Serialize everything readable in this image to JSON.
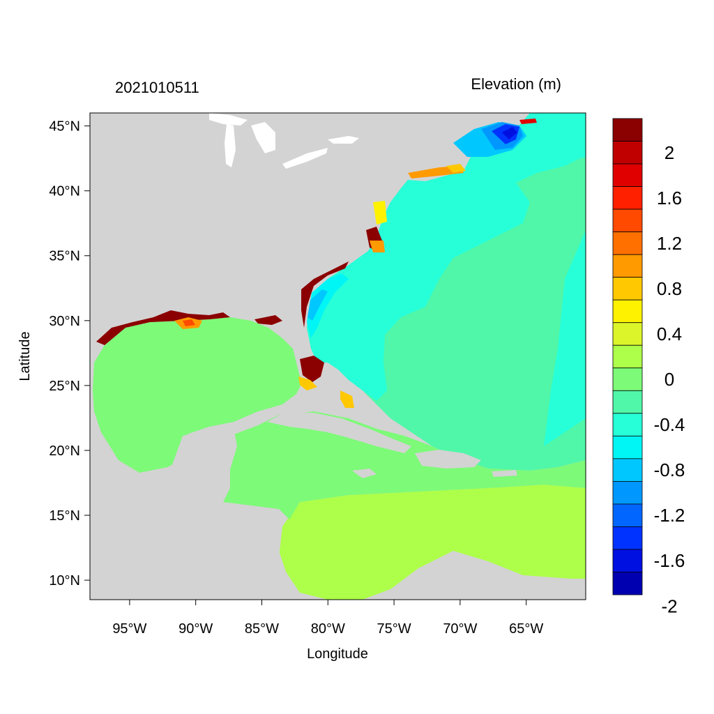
{
  "header": {
    "left_title": "2021010511",
    "right_title": "Elevation (m)"
  },
  "axes": {
    "xlabel": "Longitude",
    "ylabel": "Latitude",
    "lon_range": [
      -98,
      -60.5
    ],
    "lat_range": [
      8.5,
      46
    ],
    "x_ticks": [
      {
        "value": -95,
        "label": "95°W"
      },
      {
        "value": -90,
        "label": "90°W"
      },
      {
        "value": -85,
        "label": "85°W"
      },
      {
        "value": -80,
        "label": "80°W"
      },
      {
        "value": -75,
        "label": "75°W"
      },
      {
        "value": -70,
        "label": "70°W"
      },
      {
        "value": -65,
        "label": "65°W"
      }
    ],
    "y_ticks": [
      {
        "value": 45,
        "label": "45°N"
      },
      {
        "value": 40,
        "label": "40°N"
      },
      {
        "value": 35,
        "label": "35°N"
      },
      {
        "value": 30,
        "label": "30°N"
      },
      {
        "value": 25,
        "label": "25°N"
      },
      {
        "value": 20,
        "label": "20°N"
      },
      {
        "value": 15,
        "label": "15°N"
      },
      {
        "value": 10,
        "label": "10°N"
      }
    ]
  },
  "colorbar": {
    "levels_top_to_bottom": [
      "#8b0000",
      "#c00000",
      "#e00000",
      "#ff2000",
      "#ff4a00",
      "#ff7000",
      "#ff9a00",
      "#ffc800",
      "#fff200",
      "#dcf52a",
      "#adff4a",
      "#7dfa78",
      "#50f7a8",
      "#27ffd8",
      "#00f5f5",
      "#00c8ff",
      "#0098ff",
      "#0066ff",
      "#0033ff",
      "#0010e0",
      "#0000b0"
    ],
    "labels": [
      {
        "value": 2,
        "label": "2"
      },
      {
        "value": 1.6,
        "label": "1.6"
      },
      {
        "value": 1.2,
        "label": "1.2"
      },
      {
        "value": 0.8,
        "label": "0.8"
      },
      {
        "value": 0.4,
        "label": "0.4"
      },
      {
        "value": 0,
        "label": "0"
      },
      {
        "value": -0.4,
        "label": "-0.4"
      },
      {
        "value": -0.8,
        "label": "-0.8"
      },
      {
        "value": -1.2,
        "label": "-1.2"
      },
      {
        "value": -1.6,
        "label": "-1.6"
      },
      {
        "value": -2,
        "label": "-2"
      }
    ]
  },
  "colors": {
    "land": "#d3d3d3",
    "gulf_water": "#7dfa78",
    "caribbean_south": "#adff4a",
    "atlantic_main": "#50f7a8",
    "atlantic_north": "#27ffd8",
    "surge_high": "#8b0000",
    "surge_low": "#0010e0"
  }
}
